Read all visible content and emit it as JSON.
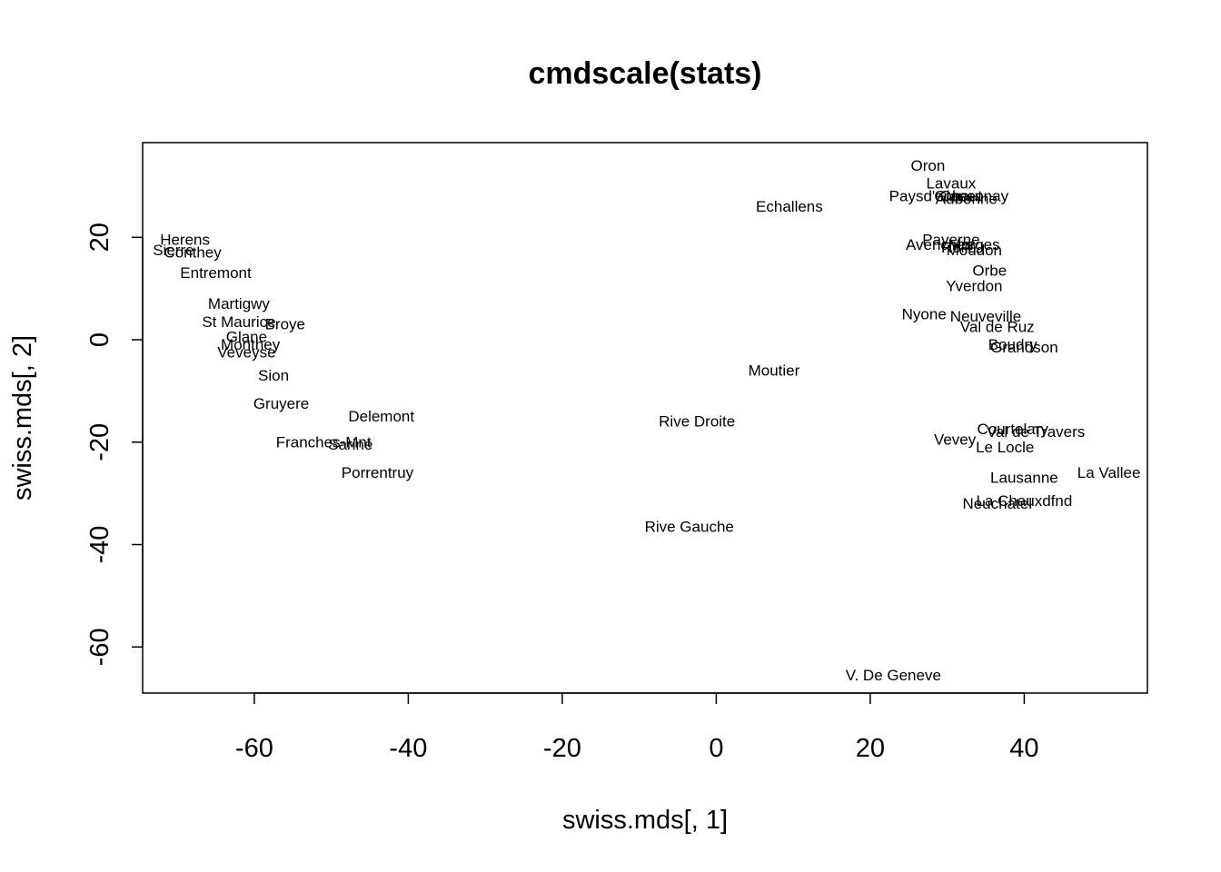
{
  "chart_data": {
    "type": "scatter",
    "title": "cmdscale(stats)",
    "xlabel": "swiss.mds[, 1]",
    "ylabel": "swiss.mds[, 2]",
    "xlim": [
      -74.5,
      56
    ],
    "ylim": [
      -69,
      38.5
    ],
    "x_ticks": [
      -60,
      -40,
      -20,
      0,
      20,
      40
    ],
    "y_ticks": [
      -60,
      -40,
      -20,
      0,
      20
    ],
    "grid": false,
    "legend": "none",
    "points": [
      {
        "label": "Oron",
        "x": 27.5,
        "y": 34.0
      },
      {
        "label": "Lavaux",
        "x": 30.5,
        "y": 30.5
      },
      {
        "label": "Paysd'enhaut",
        "x": 28.5,
        "y": 28.0
      },
      {
        "label": "Glane",
        "x": 31.0,
        "y": 28.0
      },
      {
        "label": "Aubonne",
        "x": 32.5,
        "y": 27.5
      },
      {
        "label": "Cossonay",
        "x": 33.5,
        "y": 28.0
      },
      {
        "label": "Echallens",
        "x": 9.5,
        "y": 26.0
      },
      {
        "label": "Herens",
        "x": -69.0,
        "y": 19.5
      },
      {
        "label": "Sierre",
        "x": -70.5,
        "y": 17.5
      },
      {
        "label": "Conthey",
        "x": -68.0,
        "y": 17.0
      },
      {
        "label": "Entremont",
        "x": -65.0,
        "y": 13.0
      },
      {
        "label": "Payerne",
        "x": 30.5,
        "y": 19.5
      },
      {
        "label": "Avenches",
        "x": 29.0,
        "y": 18.5
      },
      {
        "label": "Rolle",
        "x": 31.5,
        "y": 18.0
      },
      {
        "label": "Morges",
        "x": 33.5,
        "y": 18.5
      },
      {
        "label": "Moudon",
        "x": 33.5,
        "y": 17.5
      },
      {
        "label": "Orbe",
        "x": 35.5,
        "y": 13.5
      },
      {
        "label": "Yverdon",
        "x": 33.5,
        "y": 10.5
      },
      {
        "label": "Martigwy",
        "x": -62.0,
        "y": 7.0
      },
      {
        "label": "Nyone",
        "x": 27.0,
        "y": 5.0
      },
      {
        "label": "Neuveville",
        "x": 35.0,
        "y": 4.5
      },
      {
        "label": "Val de Ruz",
        "x": 36.5,
        "y": 2.5
      },
      {
        "label": "St Maurice",
        "x": -62.0,
        "y": 3.5
      },
      {
        "label": "Broye",
        "x": -56.0,
        "y": 3.0
      },
      {
        "label": "Glane",
        "x": -61.0,
        "y": 0.5
      },
      {
        "label": "Monthey",
        "x": -60.5,
        "y": -1.0
      },
      {
        "label": "Veveyse",
        "x": -61.0,
        "y": -2.5
      },
      {
        "label": "Boudry",
        "x": 38.5,
        "y": -1.0
      },
      {
        "label": "Grandson",
        "x": 40.0,
        "y": -1.5
      },
      {
        "label": "Sion",
        "x": -57.5,
        "y": -7.0
      },
      {
        "label": "Moutier",
        "x": 7.5,
        "y": -6.0
      },
      {
        "label": "Gruyere",
        "x": -56.5,
        "y": -12.5
      },
      {
        "label": "Delemont",
        "x": -43.5,
        "y": -15.0
      },
      {
        "label": "Rive Droite",
        "x": -2.5,
        "y": -16.0
      },
      {
        "label": "Courtelary",
        "x": 38.5,
        "y": -17.5
      },
      {
        "label": "Val de Travers",
        "x": 41.5,
        "y": -18.0
      },
      {
        "label": "Vevey",
        "x": 31.0,
        "y": -19.5
      },
      {
        "label": "Le Locle",
        "x": 37.5,
        "y": -21.0
      },
      {
        "label": "Franches-Mnt",
        "x": -51.0,
        "y": -20.0
      },
      {
        "label": "Sarine",
        "x": -47.5,
        "y": -20.5
      },
      {
        "label": "Porrentruy",
        "x": -44.0,
        "y": -26.0
      },
      {
        "label": "Lausanne",
        "x": 40.0,
        "y": -27.0
      },
      {
        "label": "La Vallee",
        "x": 51.0,
        "y": -26.0
      },
      {
        "label": "La Chauxdfnd",
        "x": 40.0,
        "y": -31.5
      },
      {
        "label": "Neuchatel",
        "x": 36.5,
        "y": -32.0
      },
      {
        "label": "Rive Gauche",
        "x": -3.5,
        "y": -36.5
      },
      {
        "label": "V. De Geneve",
        "x": 23.0,
        "y": -65.5
      }
    ]
  }
}
